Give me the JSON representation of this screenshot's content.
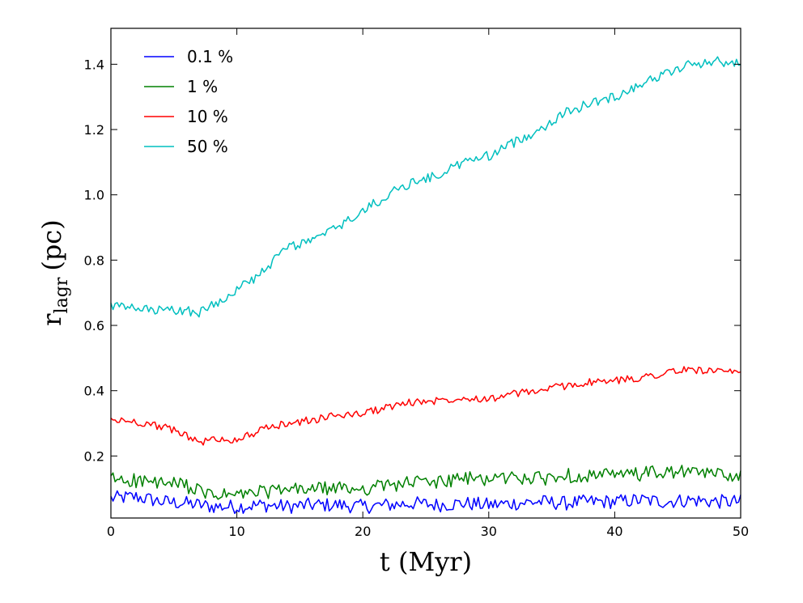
{
  "chart_data": {
    "type": "line",
    "title": "",
    "xlabel": "t (Myr)",
    "ylabel": {
      "main": "r",
      "subscript": "lagr",
      "unit": "(pc)"
    },
    "xlim": [
      0,
      50
    ],
    "ylim": [
      0.01,
      1.51
    ],
    "xticks": [
      0,
      10,
      20,
      30,
      40,
      50
    ],
    "yticks": [
      0.2,
      0.4,
      0.6,
      0.8,
      1.0,
      1.2,
      1.4
    ],
    "grid": false,
    "legend_position": "top-left",
    "x": [
      0,
      2,
      4,
      6,
      7,
      8,
      10,
      12,
      14,
      16,
      18,
      20,
      22,
      24,
      26,
      28,
      30,
      32,
      34,
      36,
      38,
      40,
      42,
      44,
      46,
      48,
      50
    ],
    "series": [
      {
        "name": "0.1 %",
        "color": "#0000ff",
        "values": [
          0.07,
          0.075,
          0.06,
          0.055,
          0.05,
          0.045,
          0.045,
          0.05,
          0.045,
          0.05,
          0.05,
          0.045,
          0.05,
          0.055,
          0.05,
          0.055,
          0.05,
          0.055,
          0.06,
          0.055,
          0.06,
          0.06,
          0.065,
          0.06,
          0.065,
          0.06,
          0.06
        ]
      },
      {
        "name": "1 %",
        "color": "#008000",
        "values": [
          0.13,
          0.125,
          0.115,
          0.11,
          0.09,
          0.08,
          0.08,
          0.09,
          0.095,
          0.1,
          0.1,
          0.1,
          0.11,
          0.12,
          0.12,
          0.13,
          0.13,
          0.135,
          0.13,
          0.14,
          0.14,
          0.14,
          0.145,
          0.15,
          0.15,
          0.145,
          0.14
        ]
      },
      {
        "name": "10 %",
        "color": "#ff0000",
        "values": [
          0.31,
          0.305,
          0.29,
          0.265,
          0.24,
          0.25,
          0.25,
          0.28,
          0.3,
          0.31,
          0.325,
          0.33,
          0.35,
          0.365,
          0.37,
          0.38,
          0.375,
          0.39,
          0.4,
          0.415,
          0.425,
          0.43,
          0.44,
          0.455,
          0.465,
          0.46,
          0.45
        ]
      },
      {
        "name": "50 %",
        "color": "#00bfbf",
        "values": [
          0.66,
          0.65,
          0.645,
          0.645,
          0.64,
          0.66,
          0.71,
          0.76,
          0.84,
          0.86,
          0.9,
          0.95,
          1.0,
          1.04,
          1.06,
          1.1,
          1.12,
          1.16,
          1.2,
          1.25,
          1.28,
          1.3,
          1.34,
          1.37,
          1.4,
          1.41,
          1.4
        ]
      }
    ]
  }
}
